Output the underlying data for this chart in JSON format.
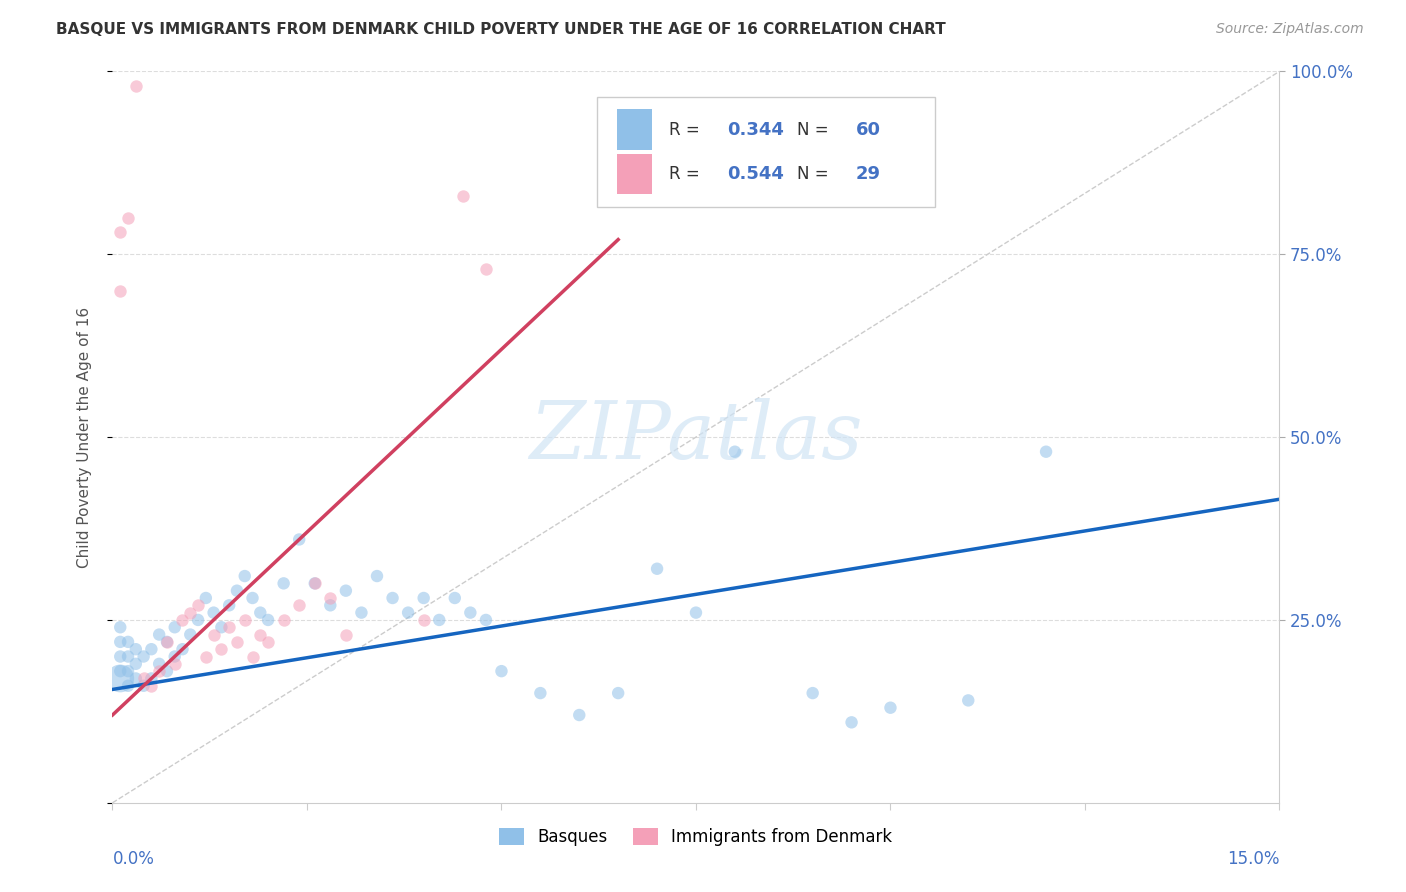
{
  "title": "BASQUE VS IMMIGRANTS FROM DENMARK CHILD POVERTY UNDER THE AGE OF 16 CORRELATION CHART",
  "source": "Source: ZipAtlas.com",
  "ylabel": "Child Poverty Under the Age of 16",
  "xlim": [
    0,
    0.15
  ],
  "ylim": [
    0,
    1.0
  ],
  "blue_R": "0.344",
  "blue_N": "60",
  "pink_R": "0.544",
  "pink_N": "29",
  "blue_color": "#90C0E8",
  "pink_color": "#F4A0B8",
  "trend_blue": "#1565C0",
  "trend_pink": "#D04060",
  "legend_label_blue": "Basques",
  "legend_label_pink": "Immigrants from Denmark",
  "watermark": "ZIPatlas",
  "blue_x": [
    0.001,
    0.001,
    0.001,
    0.001,
    0.001,
    0.002,
    0.002,
    0.002,
    0.002,
    0.003,
    0.003,
    0.003,
    0.004,
    0.004,
    0.005,
    0.005,
    0.006,
    0.006,
    0.007,
    0.007,
    0.008,
    0.008,
    0.009,
    0.01,
    0.011,
    0.012,
    0.013,
    0.014,
    0.015,
    0.016,
    0.017,
    0.018,
    0.019,
    0.02,
    0.022,
    0.024,
    0.026,
    0.028,
    0.03,
    0.032,
    0.034,
    0.036,
    0.038,
    0.04,
    0.042,
    0.044,
    0.046,
    0.048,
    0.05,
    0.055,
    0.06,
    0.065,
    0.07,
    0.075,
    0.08,
    0.09,
    0.095,
    0.1,
    0.11,
    0.12
  ],
  "blue_y": [
    0.17,
    0.18,
    0.2,
    0.22,
    0.24,
    0.16,
    0.18,
    0.2,
    0.22,
    0.17,
    0.19,
    0.21,
    0.16,
    0.2,
    0.17,
    0.21,
    0.19,
    0.23,
    0.18,
    0.22,
    0.2,
    0.24,
    0.21,
    0.23,
    0.25,
    0.28,
    0.26,
    0.24,
    0.27,
    0.29,
    0.31,
    0.28,
    0.26,
    0.25,
    0.3,
    0.36,
    0.3,
    0.27,
    0.29,
    0.26,
    0.31,
    0.28,
    0.26,
    0.28,
    0.25,
    0.28,
    0.26,
    0.25,
    0.18,
    0.15,
    0.12,
    0.15,
    0.32,
    0.26,
    0.48,
    0.15,
    0.11,
    0.13,
    0.14,
    0.48
  ],
  "blue_size": [
    400,
    80,
    80,
    80,
    80,
    80,
    80,
    80,
    80,
    80,
    80,
    80,
    80,
    80,
    80,
    80,
    80,
    80,
    80,
    80,
    80,
    80,
    80,
    80,
    80,
    80,
    80,
    80,
    80,
    80,
    80,
    80,
    80,
    80,
    80,
    80,
    80,
    80,
    80,
    80,
    80,
    80,
    80,
    80,
    80,
    80,
    80,
    80,
    80,
    80,
    80,
    80,
    80,
    80,
    80,
    80,
    80,
    80,
    80,
    80
  ],
  "pink_x": [
    0.001,
    0.001,
    0.002,
    0.003,
    0.004,
    0.005,
    0.006,
    0.007,
    0.008,
    0.009,
    0.01,
    0.011,
    0.012,
    0.013,
    0.014,
    0.015,
    0.016,
    0.017,
    0.018,
    0.019,
    0.02,
    0.022,
    0.024,
    0.026,
    0.028,
    0.03,
    0.04,
    0.045,
    0.048
  ],
  "pink_y": [
    0.7,
    0.78,
    0.8,
    0.98,
    0.17,
    0.16,
    0.18,
    0.22,
    0.19,
    0.25,
    0.26,
    0.27,
    0.2,
    0.23,
    0.21,
    0.24,
    0.22,
    0.25,
    0.2,
    0.23,
    0.22,
    0.25,
    0.27,
    0.3,
    0.28,
    0.23,
    0.25,
    0.83,
    0.73
  ],
  "blue_trend_x": [
    0.0,
    0.15
  ],
  "blue_trend_y": [
    0.155,
    0.415
  ],
  "pink_trend_x": [
    0.0,
    0.065
  ],
  "pink_trend_y": [
    0.12,
    0.77
  ]
}
